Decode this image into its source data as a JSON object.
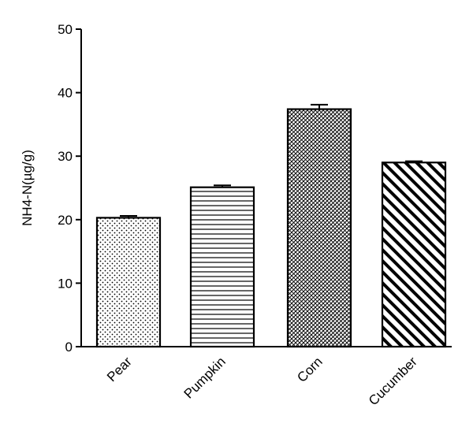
{
  "chart_data": {
    "type": "bar",
    "title": "",
    "xlabel": "",
    "ylabel": "NH4-N(µg/g)",
    "ylim": [
      0,
      50
    ],
    "yticks": [
      0,
      10,
      20,
      30,
      40,
      50
    ],
    "categories": [
      "Pear",
      "Pumpkin",
      "Corn",
      "Cucumber"
    ],
    "values": [
      20.3,
      25.1,
      37.4,
      29.0
    ],
    "errors": [
      0.3,
      0.3,
      0.7,
      0.2
    ],
    "fill_patterns": [
      "dots",
      "horizontal-lines",
      "crosshatch",
      "diagonal-stripes"
    ],
    "bar_edge_color": "#000000",
    "grid": false,
    "legend": "none"
  }
}
